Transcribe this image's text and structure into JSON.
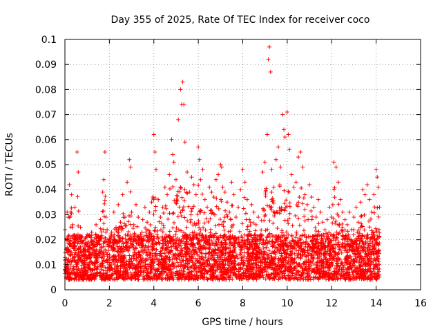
{
  "chart_data": {
    "type": "scatter",
    "title": "Day 355 of 2025, Rate Of TEC Index for receiver coco",
    "xlabel": "GPS time / hours",
    "ylabel": "ROTI / TECUs",
    "xlim": [
      0,
      16
    ],
    "ylim": [
      0,
      0.1
    ],
    "x_ticks": [
      "0",
      "2",
      "4",
      "6",
      "8",
      "10",
      "12",
      "14",
      "16"
    ],
    "y_ticks": [
      "0",
      "0.01",
      "0.02",
      "0.03",
      "0.04",
      "0.05",
      "0.06",
      "0.07",
      "0.08",
      "0.09",
      "0.1"
    ],
    "grid": true,
    "marker": "+",
    "color": "#ff0000",
    "series": [
      {
        "name": "ROTI",
        "x": [
          0.0,
          0.1,
          0.15,
          0.2,
          0.3,
          0.35,
          0.45,
          0.55,
          0.6,
          0.65,
          0.7,
          0.8,
          0.9,
          1.0,
          1.1,
          1.2,
          1.3,
          1.4,
          1.5,
          1.6,
          1.7,
          1.75,
          1.8,
          1.85,
          1.9,
          2.0,
          2.1,
          2.2,
          2.3,
          2.4,
          2.5,
          2.6,
          2.7,
          2.8,
          2.9,
          2.95,
          3.0,
          3.1,
          3.2,
          3.3,
          3.4,
          3.5,
          3.6,
          3.7,
          3.8,
          3.9,
          3.95,
          4.0,
          4.05,
          4.1,
          4.2,
          4.3,
          4.4,
          4.5,
          4.6,
          4.7,
          4.8,
          4.85,
          4.9,
          5.0,
          5.1,
          5.2,
          5.25,
          5.3,
          5.35,
          5.4,
          5.5,
          5.6,
          5.7,
          5.8,
          5.9,
          6.0,
          6.05,
          6.1,
          6.2,
          6.3,
          6.4,
          6.5,
          6.6,
          6.7,
          6.8,
          6.9,
          7.0,
          7.05,
          7.1,
          7.2,
          7.3,
          7.4,
          7.5,
          7.6,
          7.7,
          7.8,
          7.9,
          8.0,
          8.1,
          8.2,
          8.3,
          8.4,
          8.5,
          8.6,
          8.7,
          8.8,
          8.9,
          9.0,
          9.1,
          9.15,
          9.2,
          9.25,
          9.3,
          9.4,
          9.5,
          9.6,
          9.7,
          9.8,
          9.85,
          9.9,
          10.0,
          10.05,
          10.1,
          10.2,
          10.3,
          10.4,
          10.5,
          10.6,
          10.7,
          10.8,
          10.9,
          11.0,
          11.1,
          11.2,
          11.3,
          11.4,
          11.5,
          11.6,
          11.7,
          11.8,
          11.9,
          12.0,
          12.05,
          12.1,
          12.2,
          12.3,
          12.4,
          12.5,
          12.6,
          12.7,
          12.8,
          12.9,
          13.0,
          13.1,
          13.2,
          13.3,
          13.4,
          13.5,
          13.6,
          13.7,
          13.8,
          13.9,
          14.0,
          14.05,
          14.1,
          14.15
        ],
        "y": [
          0.024,
          0.031,
          0.029,
          0.042,
          0.038,
          0.026,
          0.033,
          0.055,
          0.047,
          0.021,
          0.025,
          0.019,
          0.016,
          0.022,
          0.017,
          0.023,
          0.018,
          0.026,
          0.021,
          0.028,
          0.039,
          0.044,
          0.055,
          0.029,
          0.024,
          0.019,
          0.023,
          0.031,
          0.025,
          0.034,
          0.027,
          0.038,
          0.029,
          0.043,
          0.052,
          0.049,
          0.031,
          0.026,
          0.034,
          0.029,
          0.022,
          0.028,
          0.033,
          0.027,
          0.031,
          0.035,
          0.037,
          0.062,
          0.055,
          0.048,
          0.036,
          0.029,
          0.033,
          0.041,
          0.038,
          0.046,
          0.06,
          0.054,
          0.051,
          0.044,
          0.068,
          0.08,
          0.074,
          0.083,
          0.074,
          0.059,
          0.047,
          0.039,
          0.045,
          0.042,
          0.038,
          0.057,
          0.052,
          0.044,
          0.048,
          0.036,
          0.033,
          0.041,
          0.039,
          0.037,
          0.044,
          0.046,
          0.05,
          0.049,
          0.041,
          0.039,
          0.035,
          0.031,
          0.043,
          0.038,
          0.029,
          0.033,
          0.04,
          0.048,
          0.043,
          0.036,
          0.028,
          0.034,
          0.031,
          0.026,
          0.029,
          0.022,
          0.047,
          0.051,
          0.062,
          0.092,
          0.097,
          0.087,
          0.048,
          0.041,
          0.052,
          0.057,
          0.049,
          0.07,
          0.064,
          0.061,
          0.071,
          0.062,
          0.056,
          0.046,
          0.041,
          0.043,
          0.053,
          0.055,
          0.049,
          0.038,
          0.034,
          0.042,
          0.037,
          0.033,
          0.029,
          0.036,
          0.031,
          0.027,
          0.024,
          0.028,
          0.033,
          0.029,
          0.034,
          0.051,
          0.049,
          0.043,
          0.036,
          0.031,
          0.028,
          0.026,
          0.031,
          0.024,
          0.029,
          0.033,
          0.027,
          0.035,
          0.04,
          0.038,
          0.042,
          0.036,
          0.031,
          0.038,
          0.048,
          0.045,
          0.041,
          0.033
        ]
      }
    ]
  }
}
